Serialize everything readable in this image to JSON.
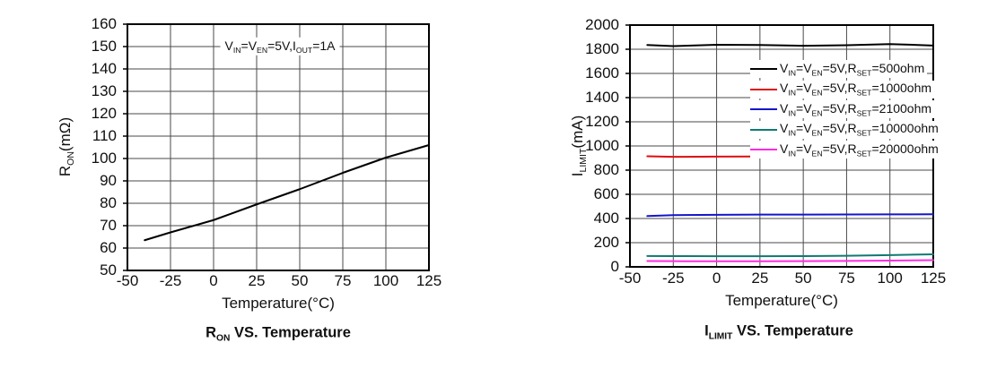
{
  "figure": {
    "background": "#ffffff",
    "grid_color": "#4a4a4a",
    "border_color": "#000000",
    "text_color": "#101010"
  },
  "chart_data": [
    {
      "type": "line",
      "title": "R~ON~ VS. Temperature",
      "xlabel": "Temperature(°C)",
      "ylabel": "R~ON~(mΩ)",
      "annotation": "V~IN~=V~EN~=5V,I~OUT~=1A",
      "xlim": [
        -50,
        125
      ],
      "ylim": [
        50,
        160
      ],
      "xticks": [
        -50,
        -25,
        0,
        25,
        50,
        75,
        100,
        125
      ],
      "yticks": [
        50,
        60,
        70,
        80,
        90,
        100,
        110,
        120,
        130,
        140,
        150,
        160
      ],
      "grid": true,
      "legend_position": "none",
      "series": [
        {
          "name": "R_ON",
          "color": "#000000",
          "x": [
            -40,
            -25,
            0,
            25,
            50,
            75,
            100,
            125
          ],
          "y": [
            63.5,
            67,
            72.5,
            79.5,
            86.3,
            93.6,
            100.4,
            106
          ]
        }
      ]
    },
    {
      "type": "line",
      "title": "I~LIMIT~ VS. Temperature",
      "xlabel": "Temperature(°C)",
      "ylabel": "I~LIMIT~(mA)",
      "annotation": null,
      "xlim": [
        -50,
        125
      ],
      "ylim": [
        0,
        2000
      ],
      "xticks": [
        -50,
        -25,
        0,
        25,
        50,
        75,
        100,
        125
      ],
      "yticks": [
        0,
        200,
        400,
        600,
        800,
        1000,
        1200,
        1400,
        1600,
        1800,
        2000
      ],
      "grid": true,
      "legend_position": "upper right",
      "series": [
        {
          "name": "V~IN~=V~EN~=5V,R~SET~=500ohm",
          "color": "#000000",
          "x": [
            -40,
            -25,
            0,
            25,
            50,
            75,
            100,
            125
          ],
          "y": [
            1835,
            1826,
            1837,
            1835,
            1829,
            1833,
            1843,
            1831
          ]
        },
        {
          "name": "V~IN~=V~EN~=5V,R~SET~=1000ohm",
          "color": "#dd0f0f",
          "x": [
            -40,
            -25,
            0,
            25,
            50,
            75,
            100,
            125
          ],
          "y": [
            915,
            910,
            912,
            913,
            914,
            920,
            932,
            918
          ]
        },
        {
          "name": "V~IN~=V~EN~=5V,R~SET~=2100ohm",
          "color": "#1515cc",
          "x": [
            -40,
            -25,
            0,
            25,
            50,
            75,
            100,
            125
          ],
          "y": [
            420,
            428,
            431,
            432,
            432,
            433,
            434,
            435
          ]
        },
        {
          "name": "V~IN~=V~EN~=5V,R~SET~=10000ohm",
          "color": "#0f7a72",
          "x": [
            -40,
            -25,
            0,
            25,
            50,
            75,
            100,
            125
          ],
          "y": [
            90,
            89,
            88,
            88,
            89,
            92,
            97,
            104
          ]
        },
        {
          "name": "V~IN~=V~EN~=5V,R~SET~=20000ohm",
          "color": "#ff2be2",
          "x": [
            -40,
            -25,
            0,
            25,
            50,
            75,
            100,
            125
          ],
          "y": [
            48,
            47,
            46,
            46,
            47,
            49,
            52,
            56
          ]
        }
      ]
    }
  ]
}
